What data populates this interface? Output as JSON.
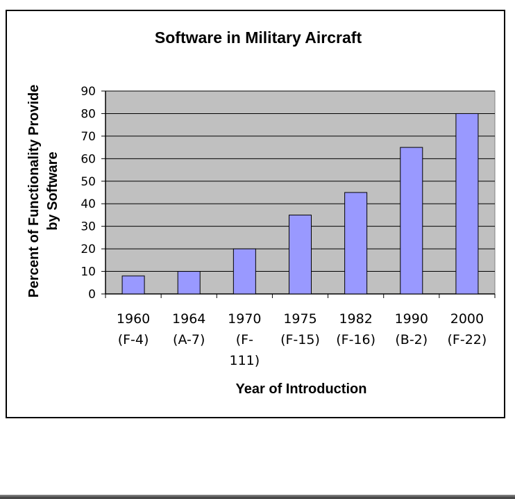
{
  "chart_data": {
    "type": "bar",
    "title": "Software in Military Aircraft",
    "xlabel": "Year of Introduction",
    "ylabel_lines": [
      "Percent of Functionality Provide",
      "by Software"
    ],
    "categories": [
      [
        "1960",
        "(F-4)"
      ],
      [
        "1964",
        "(A-7)"
      ],
      [
        "1970",
        "(F-",
        "111)"
      ],
      [
        "1975",
        "(F-15)"
      ],
      [
        "1982",
        "(F-16)"
      ],
      [
        "1990",
        "(B-2)"
      ],
      [
        "2000",
        "(F-22)"
      ]
    ],
    "values": [
      8,
      10,
      20,
      35,
      45,
      65,
      80
    ],
    "ylim": [
      0,
      90
    ],
    "yticks": [
      0,
      10,
      20,
      30,
      40,
      50,
      60,
      70,
      80,
      90
    ],
    "grid": true,
    "legend": "none",
    "colors": {
      "plot_background": "#c0c0c0",
      "bar_fill": "#9999ff",
      "bar_stroke": "#000000",
      "gridline": "#000000"
    }
  }
}
